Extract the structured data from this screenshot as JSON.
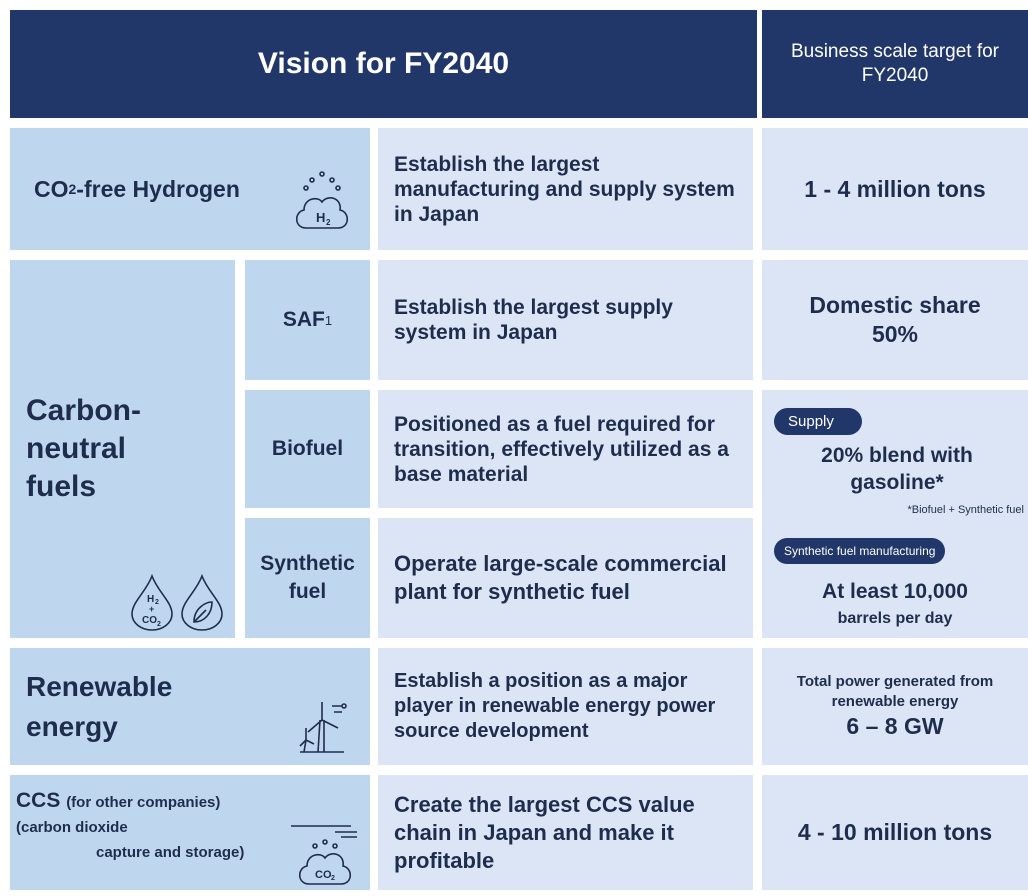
{
  "header": {
    "title": "Vision for FY2040",
    "target_heading": "Business scale target for FY2040"
  },
  "hydrogen": {
    "label": "CO",
    "label_sub": "2",
    "label_rest": "-free Hydrogen",
    "icon": "H",
    "icon_sub": "2",
    "vision": "Establish the largest manufacturing and supply system in Japan",
    "target": "1 - 4 million tons"
  },
  "carbon": {
    "label": "Carbon-neutral fuels",
    "icon_h": "H",
    "icon_h_sub": "2",
    "icon_plus": "+",
    "icon_co": "CO",
    "icon_co_sub": "2",
    "saf": {
      "name": "SAF",
      "sup": "1",
      "vision": "Establish the largest supply system in Japan",
      "target": "Domestic share 50%"
    },
    "biofuel": {
      "name": "Biofuel",
      "vision": "Positioned as a fuel required for transition, effectively utilized as a base material"
    },
    "synthetic": {
      "name": "Synthetic fuel",
      "vision": "Operate large-scale commercial plant for synthetic fuel"
    },
    "supply_tag": "Supply",
    "supply_target": "20% blend with gasoline*",
    "supply_note": "*Biofuel + Synthetic fuel",
    "synth_tag": "Synthetic fuel manufacturing",
    "synth_target": "At least 10,000",
    "synth_unit": "barrels per day"
  },
  "renewable": {
    "label": "Renewable energy",
    "vision": "Establish a position as a major player in renewable energy power source development",
    "target_caption": "Total power generated from renewable energy",
    "target": "6 – 8 GW"
  },
  "ccs": {
    "label": "CCS",
    "label_note": "(for other companies)",
    "label_line1": "(carbon dioxide",
    "label_line2": "capture and storage)",
    "icon": "CO",
    "icon_sub": "2",
    "vision": "Create the largest CCS value chain in Japan and make it profitable",
    "target": "4 - 10 million tons"
  }
}
